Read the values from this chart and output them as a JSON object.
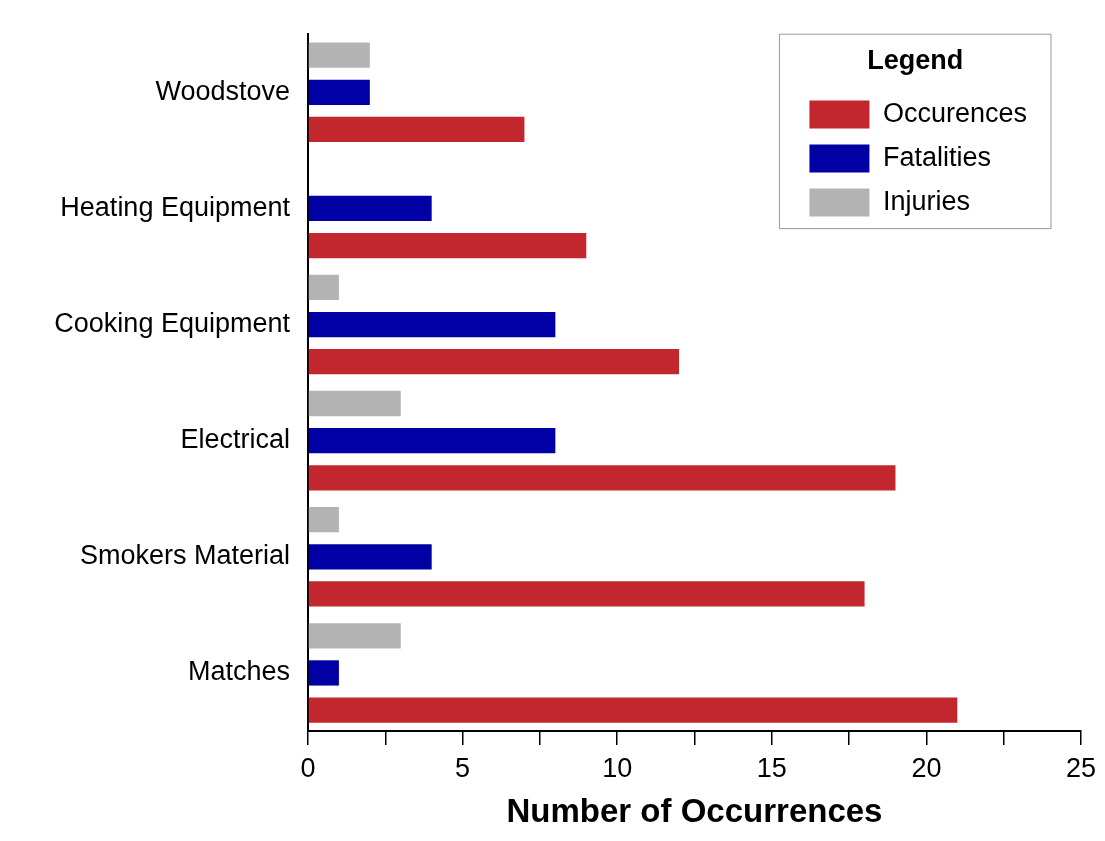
{
  "chart_data": {
    "type": "bar",
    "orientation": "horizontal",
    "categories": [
      "Woodstove",
      "Heating Equipment",
      "Cooking Equipment",
      "Electrical",
      "Smokers Material",
      "Matches"
    ],
    "series": [
      {
        "name": "Occurences",
        "color": "#c1272d",
        "values": [
          7,
          9,
          12,
          19,
          18,
          21
        ]
      },
      {
        "name": "Fatalities",
        "color": "#0000a4",
        "values": [
          2,
          4,
          8,
          8,
          4,
          1
        ]
      },
      {
        "name": "Injuries",
        "color": "#b3b3b3",
        "values": [
          2,
          0,
          1,
          3,
          1,
          3
        ]
      }
    ],
    "xlabel": "Number of Occurrences",
    "xlim": [
      0,
      25
    ],
    "xticks": [
      0,
      {
        "value": 2.5,
        "label": null
      },
      5,
      {
        "value": 7.5,
        "label": null
      },
      10,
      {
        "value": 12.5,
        "label": null
      },
      15,
      {
        "value": 17.5,
        "label": null
      },
      20,
      {
        "value": 22.5,
        "label": null
      },
      25
    ],
    "grid": false,
    "legend": "top right",
    "legend_title": "Legend"
  }
}
